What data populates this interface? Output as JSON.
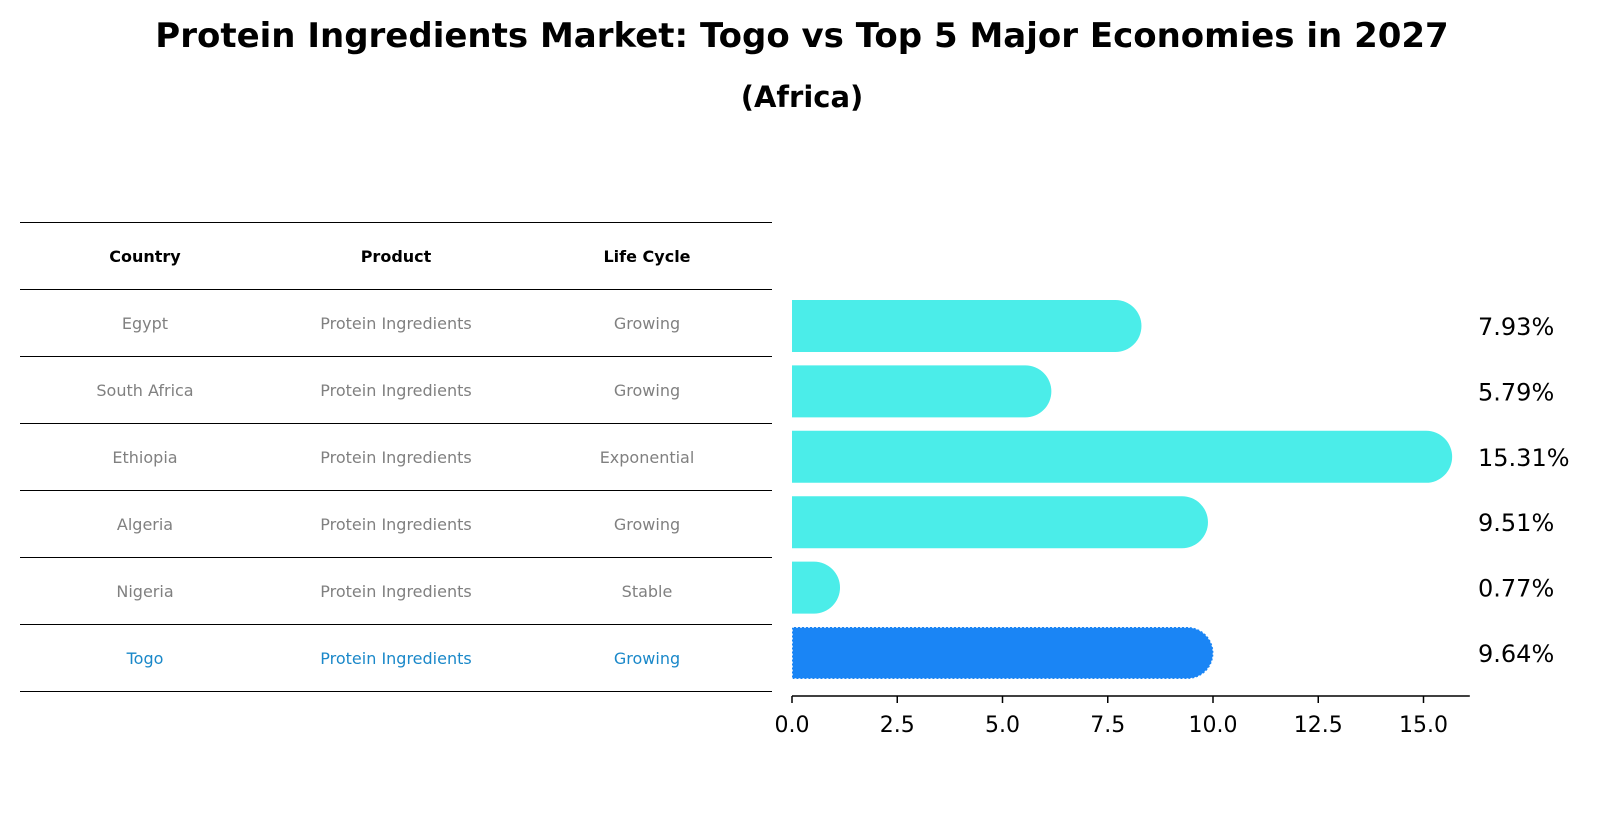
{
  "colors": {
    "bar": "#4bede9",
    "highlight": "#1a85f5",
    "highlight_text": "#1a88c9",
    "muted_text": "#808080"
  },
  "table": {
    "headers": [
      "Country",
      "Product",
      "Life Cycle"
    ],
    "rows": [
      [
        "Egypt",
        "Protein Ingredients",
        "Growing"
      ],
      [
        "South Africa",
        "Protein Ingredients",
        "Growing"
      ],
      [
        "Ethiopia",
        "Protein Ingredients",
        "Exponential"
      ],
      [
        "Algeria",
        "Protein Ingredients",
        "Growing"
      ],
      [
        "Nigeria",
        "Protein Ingredients",
        "Stable"
      ],
      [
        "Togo",
        "Protein Ingredients",
        "Growing"
      ]
    ]
  },
  "chart_data": {
    "type": "bar",
    "orientation": "horizontal",
    "title": "Protein Ingredients Market: Togo vs Top 5 Major Economies in 2027",
    "subtitle": "(Africa)",
    "categories": [
      "Egypt",
      "South Africa",
      "Ethiopia",
      "Algeria",
      "Nigeria",
      "Togo"
    ],
    "values": [
      7.93,
      5.79,
      15.31,
      9.51,
      0.77,
      9.64
    ],
    "value_labels": [
      "7.93%",
      "5.79%",
      "15.31%",
      "9.51%",
      "0.77%",
      "9.64%"
    ],
    "highlight": "Togo",
    "xlim": [
      0,
      16.1
    ],
    "xticks": [
      0.0,
      2.5,
      5.0,
      7.5,
      10.0,
      12.5,
      15.0
    ],
    "xtick_labels": [
      "0.0",
      "2.5",
      "5.0",
      "7.5",
      "10.0",
      "12.5",
      "15.0"
    ],
    "xlabel": "",
    "ylabel": "",
    "grid": false
  }
}
